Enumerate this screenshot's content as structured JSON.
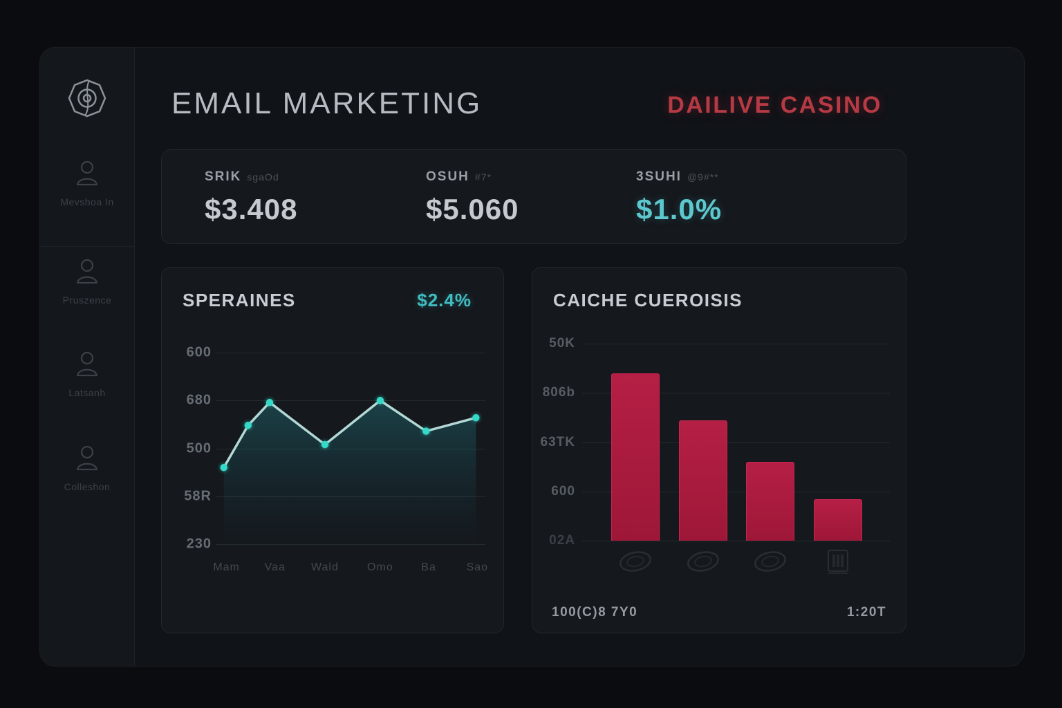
{
  "header": {
    "title": "EMAIL MARKETING",
    "brand": "DAILIVE CASINO"
  },
  "colors": {
    "page_bg": "#0a0c0f",
    "panel_bg": "#101318",
    "card_bg": "#15181d",
    "accent_teal": "#35d9c8",
    "accent_red": "#b53a43",
    "bar_fill": "#a91a3e",
    "bar_edge": "#c92550"
  },
  "sidebar": {
    "logo": "octagon-target-logo",
    "items": [
      {
        "icon": "user-icon",
        "label": "Mevshoa In"
      },
      {
        "icon": "user-icon",
        "label": "Pruszence"
      },
      {
        "icon": "user-icon",
        "label": "Latsanh"
      },
      {
        "icon": "user-icon",
        "label": "Colleshon"
      }
    ]
  },
  "stats": [
    {
      "label": "SRIK",
      "label_suffix": "sgaOd",
      "value": "$3.408",
      "style": "gray"
    },
    {
      "label": "OSUH",
      "label_suffix": "#7*",
      "value": "$5.060",
      "style": "gray"
    },
    {
      "label": "3SUHI",
      "label_suffix": "@9#**",
      "value": "$1.0%",
      "style": "teal"
    }
  ],
  "chart_data": [
    {
      "type": "line",
      "title": "SPERAINES",
      "badge": "$2.4%",
      "x_labels": [
        "Mam",
        "Vaa",
        "Wald",
        "Omo",
        "Ba",
        "Sao"
      ],
      "x_label_pct": [
        4,
        22,
        40.5,
        61,
        79,
        97
      ],
      "y_tick_labels": [
        "600",
        "680",
        "500",
        "58R",
        "230"
      ],
      "points": [
        {
          "x_pct": 3,
          "y_pct": 40
        },
        {
          "x_pct": 12,
          "y_pct": 62
        },
        {
          "x_pct": 20,
          "y_pct": 74
        },
        {
          "x_pct": 40.5,
          "y_pct": 52
        },
        {
          "x_pct": 61,
          "y_pct": 75
        },
        {
          "x_pct": 78,
          "y_pct": 59
        },
        {
          "x_pct": 96.5,
          "y_pct": 66
        }
      ],
      "line_color": "#b3d8d5",
      "marker_color": "#35d9c8",
      "grid": true,
      "legend": "none"
    },
    {
      "type": "bar",
      "title": "CAICHE CUEROISIS",
      "y_tick_labels": [
        "50K",
        "806b",
        "63TK",
        "600",
        "02A"
      ],
      "categories": [
        "swirl-logo",
        "swirl-logo",
        "swirl-logo",
        "grid-logo"
      ],
      "values_pct": [
        85,
        61,
        40,
        21
      ],
      "centers_pct": [
        17.3,
        39.3,
        61.2,
        83.2
      ],
      "footer_left": "100(C)8 7Y0",
      "footer_right": "1:20T",
      "grid": true,
      "legend": "none"
    }
  ]
}
